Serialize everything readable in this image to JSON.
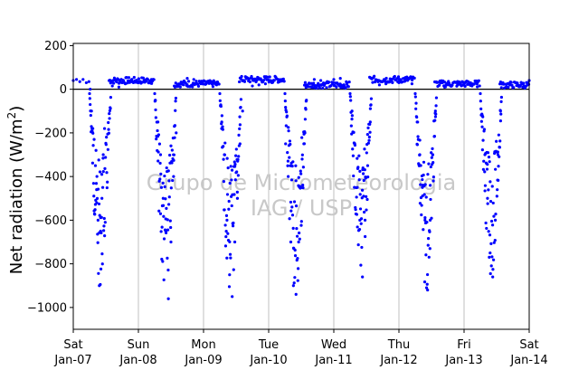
{
  "chart_data": {
    "type": "scatter",
    "title": "",
    "xlabel": "",
    "ylabel_prefix": "Net radiation (W/m",
    "ylabel_sup": "2",
    "ylabel_suffix": ")",
    "watermark": [
      "Grupo de Micrometeorologia",
      "IAG / USP"
    ],
    "ylim": [
      -1100,
      210
    ],
    "xlim": [
      0,
      7
    ],
    "grid": "vertical",
    "zero_line": true,
    "yticks": [
      200,
      0,
      -200,
      -400,
      -600,
      -800,
      -1000
    ],
    "ytick_labels": [
      "200",
      "0",
      "−200",
      "−400",
      "−600",
      "−800",
      "−1000"
    ],
    "xticks": [
      {
        "value": 0,
        "day": "Sat",
        "date": "Jan-07"
      },
      {
        "value": 1,
        "day": "Sun",
        "date": "Jan-08"
      },
      {
        "value": 2,
        "day": "Mon",
        "date": "Jan-09"
      },
      {
        "value": 3,
        "day": "Tue",
        "date": "Jan-10"
      },
      {
        "value": 4,
        "day": "Wed",
        "date": "Jan-11"
      },
      {
        "value": 5,
        "day": "Thu",
        "date": "Jan-12"
      },
      {
        "value": 6,
        "day": "Fri",
        "date": "Jan-13"
      },
      {
        "value": 7,
        "day": "Sat",
        "date": "Jan-14"
      }
    ],
    "marker_color": "#0000ff",
    "series": [
      {
        "name": "",
        "daily_peak_values": [
          -900,
          -960,
          -950,
          -940,
          -860,
          -920,
          -860
        ],
        "night_mean_values": [
          40,
          25,
          45,
          20,
          45,
          25,
          20
        ],
        "x_unit": "days since Jan-07 00:00",
        "points": [
          [
            0.0,
            40
          ],
          [
            0.05,
            45
          ],
          [
            0.1,
            35
          ],
          [
            0.15,
            45
          ],
          [
            0.2,
            30
          ],
          [
            0.24,
            35
          ],
          [
            0.26,
            0
          ],
          [
            0.28,
            -100
          ],
          [
            0.3,
            -180
          ],
          [
            0.32,
            -230
          ],
          [
            0.34,
            -350
          ],
          [
            0.36,
            -520
          ],
          [
            0.38,
            -600
          ],
          [
            0.4,
            -900
          ],
          [
            0.42,
            -650
          ],
          [
            0.44,
            -500
          ],
          [
            0.46,
            -300
          ],
          [
            0.48,
            -180
          ],
          [
            0.6,
            15
          ],
          [
            0.7,
            10
          ],
          [
            0.8,
            25
          ],
          [
            0.9,
            35
          ],
          [
            1.0,
            30
          ],
          [
            1.1,
            40
          ],
          [
            1.2,
            45
          ],
          [
            1.26,
            -50
          ],
          [
            1.3,
            -150
          ],
          [
            1.34,
            -300
          ],
          [
            1.38,
            -500
          ],
          [
            1.42,
            -650
          ],
          [
            1.46,
            -960
          ],
          [
            1.5,
            -700
          ],
          [
            1.54,
            -400
          ],
          [
            1.58,
            -200
          ],
          [
            1.75,
            50
          ],
          [
            1.85,
            45
          ],
          [
            1.95,
            30
          ],
          [
            2.05,
            35
          ],
          [
            2.15,
            30
          ],
          [
            2.2,
            20
          ],
          [
            2.28,
            -150
          ],
          [
            2.32,
            -300
          ],
          [
            2.36,
            -600
          ],
          [
            2.4,
            -850
          ],
          [
            2.44,
            -950
          ],
          [
            2.48,
            -700
          ],
          [
            2.52,
            -500
          ],
          [
            2.56,
            -250
          ],
          [
            2.6,
            -100
          ],
          [
            2.75,
            15
          ],
          [
            2.85,
            20
          ],
          [
            2.95,
            25
          ],
          [
            3.05,
            30
          ],
          [
            3.15,
            35
          ],
          [
            3.26,
            -250
          ],
          [
            3.3,
            -400
          ],
          [
            3.34,
            -700
          ],
          [
            3.38,
            -900
          ],
          [
            3.42,
            -940
          ],
          [
            3.46,
            -700
          ],
          [
            3.5,
            -450
          ],
          [
            3.54,
            -250
          ],
          [
            3.58,
            -50
          ],
          [
            3.7,
            45
          ],
          [
            3.8,
            40
          ],
          [
            3.9,
            35
          ],
          [
            4.0,
            45
          ],
          [
            4.1,
            50
          ],
          [
            4.2,
            30
          ],
          [
            4.28,
            -100
          ],
          [
            4.32,
            -250
          ],
          [
            4.36,
            -450
          ],
          [
            4.4,
            -600
          ],
          [
            4.44,
            -860
          ],
          [
            4.48,
            -600
          ],
          [
            4.52,
            -350
          ],
          [
            4.56,
            -150
          ],
          [
            4.7,
            20
          ],
          [
            4.8,
            25
          ],
          [
            4.9,
            30
          ],
          [
            5.0,
            30
          ],
          [
            5.1,
            40
          ],
          [
            5.2,
            25
          ],
          [
            5.28,
            -150
          ],
          [
            5.32,
            -300
          ],
          [
            5.36,
            -450
          ],
          [
            5.4,
            -600
          ],
          [
            5.44,
            -920
          ],
          [
            5.48,
            -600
          ],
          [
            5.52,
            -300
          ],
          [
            5.56,
            -100
          ],
          [
            5.7,
            10
          ],
          [
            5.8,
            15
          ],
          [
            5.9,
            20
          ],
          [
            6.0,
            20
          ],
          [
            6.1,
            30
          ],
          [
            6.2,
            25
          ],
          [
            6.28,
            -120
          ],
          [
            6.32,
            -300
          ],
          [
            6.36,
            -500
          ],
          [
            6.4,
            -750
          ],
          [
            6.44,
            -860
          ],
          [
            6.48,
            -600
          ],
          [
            6.52,
            -300
          ],
          [
            6.56,
            -100
          ],
          [
            6.7,
            25
          ],
          [
            6.8,
            30
          ],
          [
            6.9,
            25
          ],
          [
            7.0,
            40
          ]
        ]
      }
    ]
  }
}
